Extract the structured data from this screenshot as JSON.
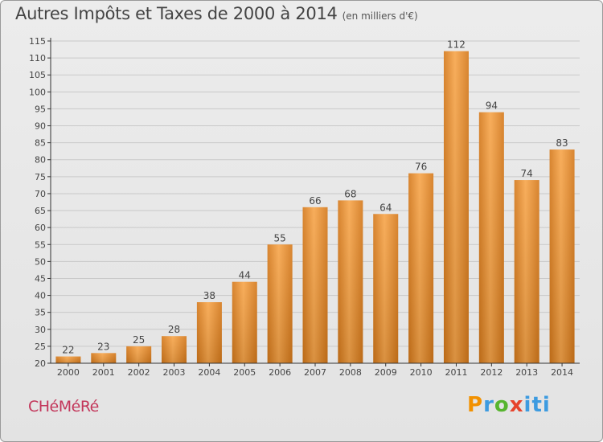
{
  "header": {
    "title": "Autres Impôts et Taxes de 2000 à 2014",
    "subtitle": "(en milliers d'€)"
  },
  "footer": {
    "commune": "CHéMéRé",
    "brand": "Proxiti"
  },
  "colors": {
    "bar_light": "#f7a54a",
    "bar_dark": "#d4781a",
    "axis": "#333333",
    "grid": "#c9c9c9",
    "commune": "#c3365a"
  },
  "chart_data": {
    "type": "bar",
    "title": "Autres Impôts et Taxes de 2000 à 2014",
    "subtitle": "(en milliers d'€)",
    "xlabel": "",
    "ylabel": "",
    "categories": [
      "2000",
      "2001",
      "2002",
      "2003",
      "2004",
      "2005",
      "2006",
      "2007",
      "2008",
      "2009",
      "2010",
      "2011",
      "2012",
      "2013",
      "2014"
    ],
    "values": [
      22,
      23,
      25,
      28,
      38,
      44,
      55,
      66,
      68,
      64,
      76,
      112,
      94,
      74,
      83
    ],
    "ylim": [
      20,
      115
    ],
    "yticks": [
      20,
      25,
      30,
      35,
      40,
      45,
      50,
      55,
      60,
      65,
      70,
      75,
      80,
      85,
      90,
      95,
      100,
      105,
      110,
      115
    ],
    "grid": true,
    "data_labels": true
  }
}
